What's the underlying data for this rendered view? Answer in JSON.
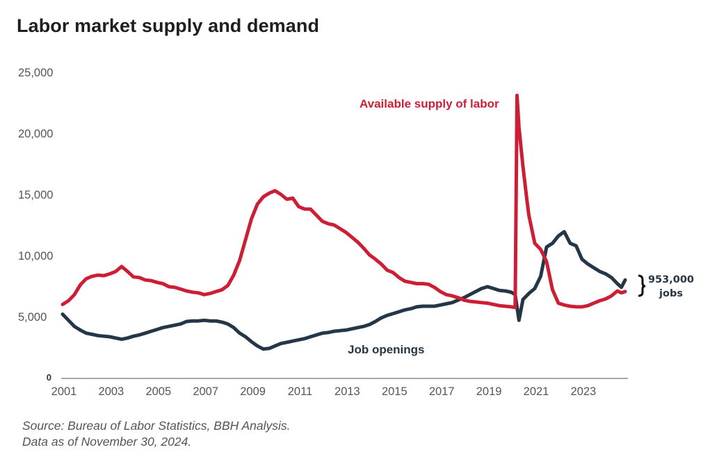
{
  "chart_data": {
    "type": "line",
    "title": "Labor market supply and demand",
    "xlabel": "",
    "ylabel": "",
    "xlim": [
      2001,
      2025
    ],
    "ylim": [
      0,
      25000
    ],
    "grid": false,
    "x_ticks": [
      "2001",
      "2003",
      "2005",
      "2007",
      "2009",
      "2011",
      "2013",
      "2015",
      "2017",
      "2019",
      "2021",
      "2023"
    ],
    "x_tick_values": [
      2001,
      2003,
      2005,
      2007,
      2009,
      2011,
      2013,
      2015,
      2017,
      2019,
      2021,
      2023
    ],
    "y_ticks": [
      "0",
      "5,000",
      "10,000",
      "15,000",
      "20,000",
      "25,000"
    ],
    "y_tick_values": [
      0,
      5000,
      10000,
      15000,
      20000,
      25000
    ],
    "series": [
      {
        "name": "Available supply of labor",
        "color": "#CC1F36",
        "label_position": "top-center",
        "x": [
          2001.0,
          2001.25,
          2001.5,
          2001.75,
          2002.0,
          2002.25,
          2002.5,
          2002.75,
          2003.0,
          2003.25,
          2003.5,
          2003.75,
          2004.0,
          2004.25,
          2004.5,
          2004.75,
          2005.0,
          2005.25,
          2005.5,
          2005.75,
          2006.0,
          2006.25,
          2006.5,
          2006.75,
          2007.0,
          2007.25,
          2007.5,
          2007.75,
          2008.0,
          2008.25,
          2008.5,
          2008.75,
          2009.0,
          2009.25,
          2009.5,
          2009.75,
          2010.0,
          2010.25,
          2010.5,
          2010.75,
          2011.0,
          2011.25,
          2011.5,
          2011.75,
          2012.0,
          2012.25,
          2012.5,
          2012.75,
          2013.0,
          2013.25,
          2013.5,
          2013.75,
          2014.0,
          2014.25,
          2014.5,
          2014.75,
          2015.0,
          2015.25,
          2015.5,
          2015.75,
          2016.0,
          2016.25,
          2016.5,
          2016.75,
          2017.0,
          2017.25,
          2017.5,
          2017.75,
          2018.0,
          2018.25,
          2018.5,
          2018.75,
          2019.0,
          2019.25,
          2019.5,
          2019.75,
          2020.0,
          2020.17,
          2020.25,
          2020.33,
          2020.5,
          2020.67,
          2020.75,
          2021.0,
          2021.25,
          2021.5,
          2021.75,
          2022.0,
          2022.25,
          2022.5,
          2022.75,
          2023.0,
          2023.25,
          2023.5,
          2023.75,
          2024.0,
          2024.25,
          2024.5,
          2024.67,
          2024.83
        ],
        "values": [
          6000,
          6300,
          6800,
          7600,
          8100,
          8300,
          8400,
          8350,
          8500,
          8700,
          9100,
          8700,
          8250,
          8200,
          8000,
          7950,
          7800,
          7700,
          7450,
          7400,
          7250,
          7100,
          7000,
          6950,
          6800,
          6900,
          7050,
          7200,
          7550,
          8400,
          9600,
          11300,
          13000,
          14200,
          14800,
          15100,
          15300,
          15000,
          14600,
          14700,
          14000,
          13800,
          13800,
          13300,
          12800,
          12600,
          12500,
          12200,
          11900,
          11500,
          11100,
          10600,
          10050,
          9700,
          9300,
          8800,
          8600,
          8200,
          7900,
          7800,
          7700,
          7700,
          7650,
          7400,
          7050,
          6800,
          6700,
          6550,
          6350,
          6250,
          6200,
          6150,
          6100,
          6000,
          5900,
          5850,
          5800,
          5750,
          23100,
          20500,
          17300,
          14500,
          13300,
          11000,
          10500,
          9500,
          7200,
          6100,
          5950,
          5850,
          5800,
          5800,
          5900,
          6100,
          6300,
          6450,
          6700,
          7100,
          6950,
          7050
        ]
      },
      {
        "name": "Job openings",
        "color": "#253746",
        "label_position": "bottom-center",
        "x": [
          2001.0,
          2001.25,
          2001.5,
          2001.75,
          2002.0,
          2002.25,
          2002.5,
          2002.75,
          2003.0,
          2003.25,
          2003.5,
          2003.75,
          2004.0,
          2004.25,
          2004.5,
          2004.75,
          2005.0,
          2005.25,
          2005.5,
          2005.75,
          2006.0,
          2006.25,
          2006.5,
          2006.75,
          2007.0,
          2007.25,
          2007.5,
          2007.75,
          2008.0,
          2008.25,
          2008.5,
          2008.75,
          2009.0,
          2009.25,
          2009.5,
          2009.75,
          2010.0,
          2010.25,
          2010.5,
          2010.75,
          2011.0,
          2011.25,
          2011.5,
          2011.75,
          2012.0,
          2012.25,
          2012.5,
          2012.75,
          2013.0,
          2013.25,
          2013.5,
          2013.75,
          2014.0,
          2014.25,
          2014.5,
          2014.75,
          2015.0,
          2015.25,
          2015.5,
          2015.75,
          2016.0,
          2016.25,
          2016.5,
          2016.75,
          2017.0,
          2017.25,
          2017.5,
          2017.75,
          2018.0,
          2018.25,
          2018.5,
          2018.75,
          2019.0,
          2019.25,
          2019.5,
          2019.75,
          2020.0,
          2020.17,
          2020.33,
          2020.5,
          2020.75,
          2021.0,
          2021.25,
          2021.5,
          2021.75,
          2022.0,
          2022.25,
          2022.5,
          2022.75,
          2023.0,
          2023.25,
          2023.5,
          2023.75,
          2024.0,
          2024.25,
          2024.5,
          2024.67,
          2024.83
        ],
        "values": [
          5200,
          4700,
          4200,
          3900,
          3650,
          3550,
          3450,
          3400,
          3350,
          3250,
          3150,
          3250,
          3400,
          3500,
          3650,
          3800,
          3950,
          4100,
          4200,
          4300,
          4400,
          4600,
          4650,
          4650,
          4700,
          4650,
          4650,
          4550,
          4400,
          4100,
          3650,
          3350,
          2950,
          2600,
          2350,
          2400,
          2600,
          2800,
          2900,
          3000,
          3100,
          3200,
          3350,
          3500,
          3650,
          3700,
          3800,
          3850,
          3900,
          4000,
          4100,
          4200,
          4350,
          4600,
          4900,
          5100,
          5250,
          5400,
          5550,
          5650,
          5800,
          5850,
          5850,
          5850,
          5950,
          6050,
          6150,
          6350,
          6550,
          6800,
          7050,
          7300,
          7450,
          7300,
          7150,
          7100,
          7000,
          6800,
          4700,
          6400,
          6900,
          7300,
          8300,
          10700,
          11000,
          11600,
          11950,
          11000,
          10800,
          9700,
          9300,
          9000,
          8700,
          8500,
          8200,
          7700,
          7400,
          8000
        ]
      }
    ],
    "annotations": [
      {
        "text": "Available supply of labor",
        "series": "Available supply of labor"
      },
      {
        "text": "Job openings",
        "series": "Job openings"
      },
      {
        "text_line1": "953,000",
        "text_line2": "jobs",
        "meaning": "gap between job openings and available supply at latest point"
      }
    ]
  },
  "header": {
    "title": "Labor market supply and demand"
  },
  "footer": {
    "source_line1": "Source: Bureau of Labor Statistics, BBH Analysis.",
    "source_line2": "Data as of November 30, 2024."
  }
}
